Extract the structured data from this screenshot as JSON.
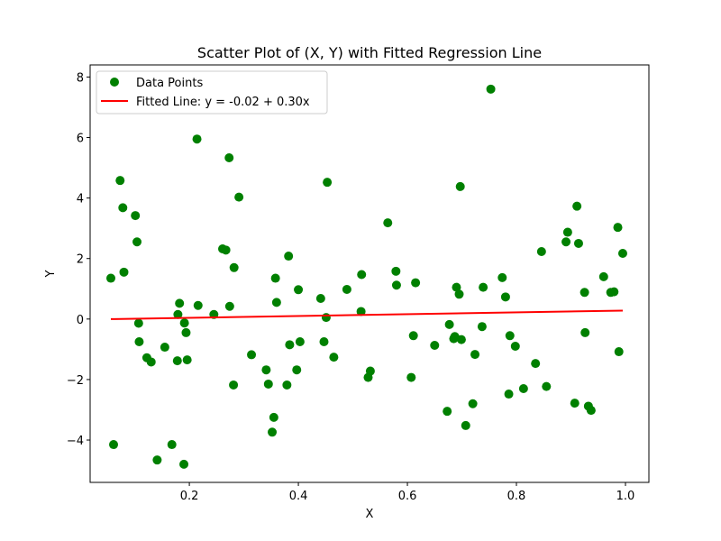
{
  "chart_data": {
    "type": "scatter",
    "title": "Scatter Plot of (X, Y) with Fitted Regression Line",
    "xlabel": "X",
    "ylabel": "Y",
    "xlim": [
      0.018,
      1.043
    ],
    "ylim": [
      -5.4,
      8.4
    ],
    "xticks": [
      0.2,
      0.4,
      0.6,
      0.8,
      1.0
    ],
    "xtick_labels": [
      "0.2",
      "0.4",
      "0.6",
      "0.8",
      "1.0"
    ],
    "yticks": [
      -4,
      -2,
      0,
      2,
      4,
      6,
      8
    ],
    "ytick_labels": [
      "−4",
      "−2",
      "0",
      "2",
      "4",
      "6",
      "8"
    ],
    "grid": false,
    "legend": {
      "position": "top-left",
      "entries": [
        "Data Points",
        "Fitted Line: y = -0.02 + 0.30x"
      ]
    },
    "colors": {
      "points": "#008000",
      "line": "#ff0000"
    },
    "series": [
      {
        "name": "Data Points",
        "kind": "scatter",
        "points": [
          [
            0.056,
            1.35
          ],
          [
            0.061,
            -4.15
          ],
          [
            0.073,
            4.58
          ],
          [
            0.078,
            3.68
          ],
          [
            0.08,
            1.55
          ],
          [
            0.101,
            3.42
          ],
          [
            0.104,
            2.55
          ],
          [
            0.107,
            -0.14
          ],
          [
            0.108,
            -0.75
          ],
          [
            0.122,
            -1.28
          ],
          [
            0.13,
            -1.42
          ],
          [
            0.141,
            -4.66
          ],
          [
            0.155,
            -0.93
          ],
          [
            0.168,
            -4.15
          ],
          [
            0.178,
            -1.38
          ],
          [
            0.179,
            0.15
          ],
          [
            0.182,
            0.52
          ],
          [
            0.19,
            -4.8
          ],
          [
            0.191,
            -0.13
          ],
          [
            0.194,
            -0.45
          ],
          [
            0.196,
            -1.35
          ],
          [
            0.214,
            5.95
          ],
          [
            0.216,
            0.45
          ],
          [
            0.245,
            0.15
          ],
          [
            0.261,
            2.32
          ],
          [
            0.267,
            2.28
          ],
          [
            0.273,
            5.33
          ],
          [
            0.274,
            0.42
          ],
          [
            0.281,
            -2.18
          ],
          [
            0.282,
            1.7
          ],
          [
            0.291,
            4.03
          ],
          [
            0.314,
            -1.18
          ],
          [
            0.341,
            -1.68
          ],
          [
            0.345,
            -2.15
          ],
          [
            0.352,
            -3.74
          ],
          [
            0.355,
            -3.25
          ],
          [
            0.358,
            1.35
          ],
          [
            0.36,
            0.55
          ],
          [
            0.379,
            -2.18
          ],
          [
            0.382,
            2.08
          ],
          [
            0.384,
            -0.85
          ],
          [
            0.397,
            -1.68
          ],
          [
            0.4,
            0.97
          ],
          [
            0.403,
            -0.75
          ],
          [
            0.441,
            0.68
          ],
          [
            0.447,
            -0.75
          ],
          [
            0.451,
            0.05
          ],
          [
            0.453,
            4.52
          ],
          [
            0.465,
            -1.26
          ],
          [
            0.489,
            0.98
          ],
          [
            0.515,
            0.25
          ],
          [
            0.516,
            1.47
          ],
          [
            0.528,
            -1.93
          ],
          [
            0.532,
            -1.72
          ],
          [
            0.564,
            3.18
          ],
          [
            0.579,
            1.58
          ],
          [
            0.58,
            1.12
          ],
          [
            0.607,
            -1.93
          ],
          [
            0.611,
            -0.55
          ],
          [
            0.615,
            1.2
          ],
          [
            0.65,
            -0.87
          ],
          [
            0.673,
            -3.05
          ],
          [
            0.677,
            -0.18
          ],
          [
            0.685,
            -0.65
          ],
          [
            0.687,
            -0.58
          ],
          [
            0.69,
            1.05
          ],
          [
            0.695,
            0.82
          ],
          [
            0.697,
            4.38
          ],
          [
            0.699,
            -0.68
          ],
          [
            0.707,
            -3.52
          ],
          [
            0.72,
            -2.8
          ],
          [
            0.724,
            -1.17
          ],
          [
            0.737,
            -0.25
          ],
          [
            0.739,
            1.05
          ],
          [
            0.753,
            7.6
          ],
          [
            0.774,
            1.37
          ],
          [
            0.78,
            0.73
          ],
          [
            0.786,
            -2.48
          ],
          [
            0.788,
            -0.55
          ],
          [
            0.798,
            -0.9
          ],
          [
            0.813,
            -2.3
          ],
          [
            0.835,
            -1.47
          ],
          [
            0.846,
            2.23
          ],
          [
            0.855,
            -2.23
          ],
          [
            0.891,
            2.55
          ],
          [
            0.894,
            2.87
          ],
          [
            0.907,
            -2.78
          ],
          [
            0.911,
            3.73
          ],
          [
            0.914,
            2.5
          ],
          [
            0.925,
            0.88
          ],
          [
            0.926,
            -0.45
          ],
          [
            0.932,
            -2.88
          ],
          [
            0.937,
            -3.02
          ],
          [
            0.96,
            1.4
          ],
          [
            0.973,
            0.88
          ],
          [
            0.979,
            0.9
          ],
          [
            0.986,
            3.03
          ],
          [
            0.988,
            -1.08
          ],
          [
            0.995,
            2.17
          ]
        ]
      },
      {
        "name": "Fitted Line: y = -0.02 + 0.30x",
        "kind": "line",
        "intercept": -0.02,
        "slope": 0.3,
        "x_range": [
          0.056,
          0.995
        ]
      }
    ]
  }
}
